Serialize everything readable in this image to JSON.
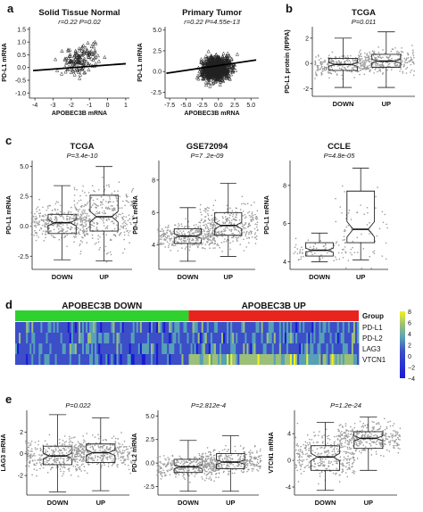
{
  "panels": {
    "a": "a",
    "b": "b",
    "c": "c",
    "d": "d",
    "e": "e"
  },
  "colors": {
    "box_fill": "#ffffff",
    "point": "#9a9a9a",
    "green": "#2fd12f",
    "red": "#e8241f",
    "heat_low": "#1a1ad6",
    "heat_mid": "#56a0b8",
    "heat_high": "#f2f21f"
  },
  "chart_data": [
    {
      "id": "a1",
      "type": "scatter",
      "title": "Solid Tissue Normal",
      "subtitle": "r=0.22 P=0.02",
      "xlabel": "APOBEC3B mRNA",
      "ylabel": "PD-L1 mRNA",
      "xticks": [
        "-4",
        "-3",
        "-2",
        "-1",
        "0",
        "1"
      ],
      "yticks": [
        "-1.0",
        "-0.5",
        "0.0",
        "0.5",
        "1.0",
        "1.5"
      ],
      "xlim": [
        -4.3,
        1.2
      ],
      "ylim": [
        -1.2,
        1.6
      ],
      "marker": "triangle",
      "fit": {
        "x": [
          -4.1,
          1.0
        ],
        "y": [
          -0.12,
          0.15
        ]
      }
    },
    {
      "id": "a2",
      "type": "scatter",
      "title": "Primary Tumor",
      "subtitle": "r=0.22 P=4.55e-13",
      "xlabel": "APOBEC3B mRNA",
      "ylabel": "PD-L1 mRNA",
      "xticks": [
        "-7.5",
        "-5.0",
        "-2.5",
        "0.0",
        "2.5",
        "5.0"
      ],
      "yticks": [
        "-2.5",
        "0.0",
        "2.5",
        "5.0"
      ],
      "xlim": [
        -8.2,
        6.2
      ],
      "ylim": [
        -3.2,
        5.4
      ],
      "marker": "triangle",
      "fit": {
        "x": [
          -8.0,
          5.8
        ],
        "y": [
          -0.2,
          1.4
        ]
      }
    },
    {
      "id": "b",
      "type": "box",
      "title": "TCGA",
      "subtitle": "P=0.011",
      "ylabel": "PD-L1 protein (RPPA)",
      "categories": [
        "DOWN",
        "UP"
      ],
      "yticks": [
        "-2",
        "0",
        "2"
      ],
      "ylim": [
        -2.6,
        2.9
      ],
      "boxes": [
        {
          "q1": -0.55,
          "med": -0.08,
          "q3": 0.4,
          "lo": -1.9,
          "hi": 2.0
        },
        {
          "q1": -0.3,
          "med": 0.18,
          "q3": 0.72,
          "lo": -1.9,
          "hi": 2.5
        }
      ]
    },
    {
      "id": "c1",
      "type": "box",
      "title": "TCGA",
      "subtitle": "P=3.4e-10",
      "ylabel": "PD-L1 mRNA",
      "categories": [
        "DOWN",
        "UP"
      ],
      "yticks": [
        "-2.5",
        "0.0",
        "2.5",
        "5.0"
      ],
      "ylim": [
        -3.6,
        5.5
      ],
      "boxes": [
        {
          "q1": -0.6,
          "med": 0.3,
          "q3": 1.0,
          "lo": -2.8,
          "hi": 3.4
        },
        {
          "q1": -0.4,
          "med": 0.8,
          "q3": 2.6,
          "lo": -2.9,
          "hi": 5.0
        }
      ]
    },
    {
      "id": "c2",
      "type": "box",
      "title": "GSE72094",
      "subtitle": "P=7 .2e-09",
      "ylabel": "PD-L1 mRNA",
      "categories": [
        "DOWN",
        "UP"
      ],
      "yticks": [
        "4",
        "6",
        "8"
      ],
      "ylim": [
        2.5,
        9.2
      ],
      "boxes": [
        {
          "q1": 4.1,
          "med": 4.55,
          "q3": 5.0,
          "lo": 3.0,
          "hi": 6.3
        },
        {
          "q1": 4.6,
          "med": 5.2,
          "q3": 6.0,
          "lo": 3.3,
          "hi": 7.8
        }
      ]
    },
    {
      "id": "c3",
      "type": "box",
      "title": "CCLE",
      "subtitle": "P=4.8e-05",
      "ylabel": "PD-L1 mRNA",
      "categories": [
        "DOWN",
        "UP"
      ],
      "yticks": [
        "4",
        "6",
        "8"
      ],
      "ylim": [
        3.6,
        9.3
      ],
      "boxes": [
        {
          "q1": 4.3,
          "med": 4.6,
          "q3": 5.0,
          "lo": 4.0,
          "hi": 5.5
        },
        {
          "q1": 5.0,
          "med": 5.7,
          "q3": 7.7,
          "lo": 4.1,
          "hi": 8.9
        }
      ]
    },
    {
      "id": "d",
      "type": "heatmap",
      "groups": [
        "APOBEC3B DOWN",
        "APOBEC3B UP"
      ],
      "group_label": "Group",
      "rows": [
        "PD-L1",
        "PD-L2",
        "LAG3",
        "VTCN1"
      ],
      "scale_ticks": [
        "8",
        "6",
        "4",
        "2",
        "0",
        "−2",
        "−4"
      ],
      "zlim": [
        -4,
        8
      ]
    },
    {
      "id": "e1",
      "type": "box",
      "subtitle": "P=0.022",
      "ylabel": "LAG3 mRNA",
      "categories": [
        "DOWN",
        "UP"
      ],
      "yticks": [
        "-2",
        "0",
        "2"
      ],
      "ylim": [
        -3.8,
        4.0
      ],
      "boxes": [
        {
          "q1": -1.0,
          "med": -0.2,
          "q3": 0.7,
          "lo": -3.5,
          "hi": 3.6
        },
        {
          "q1": -0.8,
          "med": 0.1,
          "q3": 0.9,
          "lo": -3.4,
          "hi": 3.3
        }
      ]
    },
    {
      "id": "e2",
      "type": "box",
      "subtitle": "P=2.812e-4",
      "ylabel": "PD-L2 mRNA",
      "categories": [
        "DOWN",
        "UP"
      ],
      "yticks": [
        "-2.5",
        "0.0",
        "2.5",
        "5.0"
      ],
      "ylim": [
        -3.4,
        5.6
      ],
      "boxes": [
        {
          "q1": -1.0,
          "med": -0.4,
          "q3": 0.4,
          "lo": -3.0,
          "hi": 2.4
        },
        {
          "q1": -0.6,
          "med": 0.1,
          "q3": 1.0,
          "lo": -3.0,
          "hi": 2.9
        }
      ]
    },
    {
      "id": "e3",
      "type": "box",
      "subtitle": "P=1.2e-24",
      "ylabel": "VTCN1 mRNA",
      "categories": [
        "DOWN",
        "UP"
      ],
      "yticks": [
        "-4",
        "0",
        "4"
      ],
      "ylim": [
        -5.2,
        7.5
      ],
      "boxes": [
        {
          "q1": -1.5,
          "med": 0.5,
          "q3": 2.2,
          "lo": -4.5,
          "hi": 5.7
        },
        {
          "q1": 1.8,
          "med": 3.3,
          "q3": 4.3,
          "lo": -1.5,
          "hi": 6.5
        }
      ]
    }
  ]
}
